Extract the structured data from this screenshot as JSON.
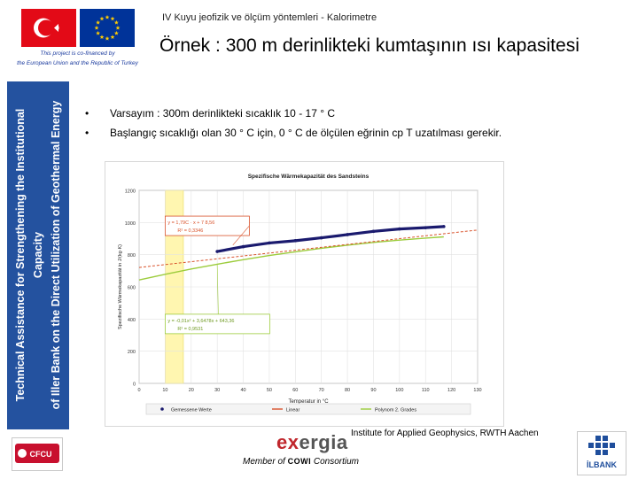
{
  "header": {
    "topline": "IV Kuyu jeofizik ve ölçüm yöntemleri - Kalorimetre",
    "title": "Örnek : 300 m derinlikteki kumtaşının ısı kapasitesi"
  },
  "cofinance": {
    "line1": "This project is co-financed by",
    "line2": "the European Union and the Republic of Turkey"
  },
  "sidebar": {
    "line1": "Technical Assistance for Strengthening the Institutional Capacity",
    "line2": "of Iller Bank on the Direct Utilization of Geothermal Energy"
  },
  "bullets": [
    "Varsayım : 300m derinlikteki sıcaklık 10 - 17 ° C",
    "Başlangıç sıcaklığı olan  30 ° C için,  0 ° C de ölçülen eğrinin cp T uzatılması gerekir."
  ],
  "chart_data": {
    "type": "line",
    "title": "Spezifische Wärmekapazität des Sandsteins",
    "xlabel": "Temperatur in °C",
    "ylabel": "Spezifische Wärmekapazität in J/(kg·K)",
    "xlim": [
      0,
      130
    ],
    "ylim": [
      0,
      1200
    ],
    "xticks": [
      "0",
      "10",
      "20",
      "30",
      "40",
      "50",
      "60",
      "70",
      "80",
      "90",
      "100",
      "110",
      "120",
      "130"
    ],
    "yticks": [
      "0",
      "200",
      "400",
      "600",
      "800",
      "1000",
      "1200"
    ],
    "highlight_band": [
      10,
      17
    ],
    "series": [
      {
        "name": "Gemessene Werte",
        "color": "#1a1a6e",
        "x": [
          30,
          40,
          50,
          60,
          70,
          80,
          90,
          100,
          110,
          117
        ],
        "y": [
          820,
          850,
          873,
          887,
          905,
          925,
          945,
          960,
          968,
          975
        ]
      },
      {
        "name": "Linear",
        "color": "#d9532c",
        "x": [
          0,
          130
        ],
        "y": [
          720.7,
          953.4
        ]
      },
      {
        "name": "Polynom 2. Grades",
        "color": "#9ccc3c",
        "x": [
          0,
          10,
          20,
          30,
          40,
          50,
          60,
          70,
          80,
          90,
          100,
          110,
          117
        ],
        "y": [
          643,
          678,
          711,
          741,
          769,
          795,
          818,
          840,
          859,
          876,
          891,
          903,
          911
        ]
      }
    ],
    "annotations": [
      {
        "text1": "y = 1,79C · x + 7 8,56",
        "text2": "R² = 0,3346",
        "color": "#d9532c"
      },
      {
        "text1": "y = -0,01x² + 3,6478x + 643,36",
        "text2": "R² = 0,9531",
        "color": "#9ccc3c"
      }
    ],
    "grid": true,
    "legend": "bottom"
  },
  "footer": {
    "credit": "Institute for Applied Geophysics, RWTH Aachen",
    "member_prefix": "Member of",
    "member_cowi": "COWI",
    "member_suffix": "Consortium",
    "exergia_x": "ex",
    "exergia_rest": "ergia",
    "cfcu": "CFCU",
    "ilbank": "İLBANK"
  },
  "colors": {
    "sidebar": "#24529f",
    "flag_turkey": "#e30a17",
    "flag_eu": "#003399",
    "eu_stars": "#ffcc00"
  }
}
